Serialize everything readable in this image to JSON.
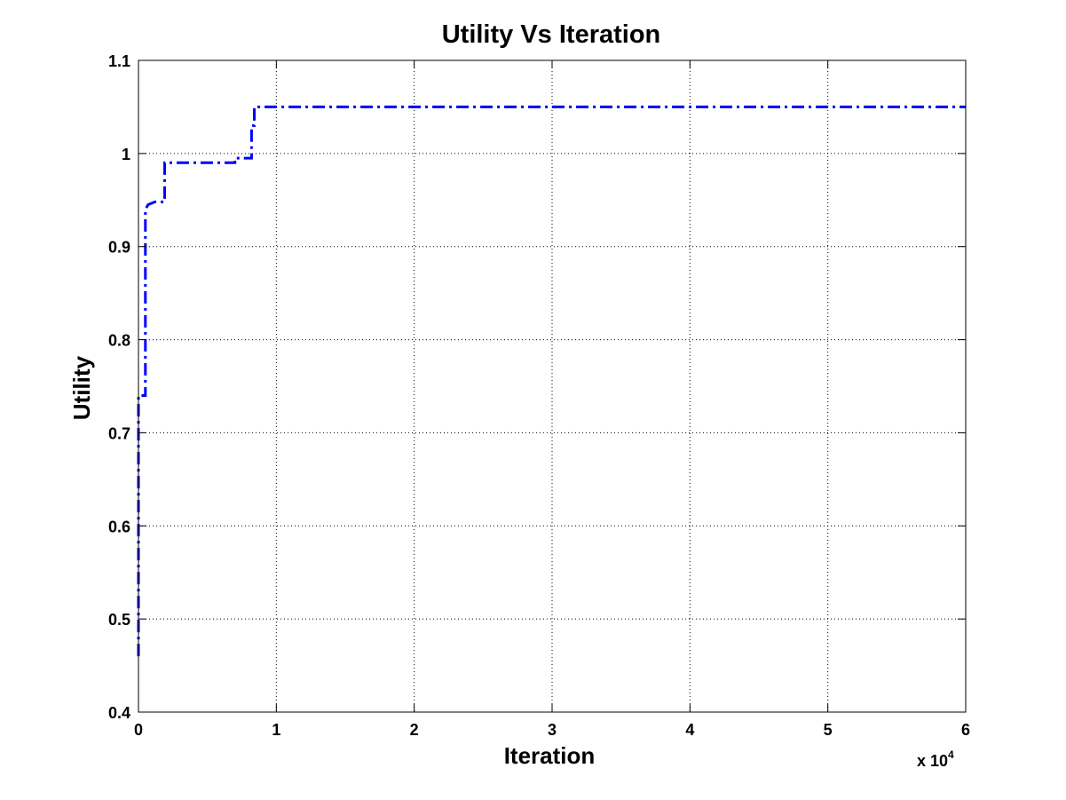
{
  "chart_data": {
    "type": "line",
    "title": "Utility Vs Iteration",
    "xlabel": "Iteration",
    "ylabel": "Utility",
    "x_exponent_base": "x 10",
    "x_exponent_power": "4",
    "xlim": [
      0,
      6
    ],
    "ylim": [
      0.4,
      1.1
    ],
    "xticks": [
      0,
      1,
      2,
      3,
      4,
      5,
      6
    ],
    "xtick_labels": [
      "0",
      "1",
      "2",
      "3",
      "4",
      "5",
      "6"
    ],
    "yticks": [
      0.4,
      0.5,
      0.6,
      0.7,
      0.8,
      0.9,
      1.0,
      1.1
    ],
    "ytick_labels": [
      "0.4",
      "0.5",
      "0.6",
      "0.7",
      "0.8",
      "0.9",
      "1",
      "1.1"
    ],
    "grid": true,
    "line_style": "dash-dot",
    "line_color": "#0000ff",
    "series": [
      {
        "x": [
          0,
          0,
          0.05,
          0.05,
          0.07,
          0.07,
          0.12,
          0.12,
          0.19,
          0.19,
          0.7,
          0.7,
          0.82,
          0.82,
          0.84,
          0.84,
          6
        ],
        "y": [
          0.46,
          0.74,
          0.74,
          0.94,
          0.945,
          0.945,
          0.948,
          0.948,
          0.948,
          0.99,
          0.99,
          0.995,
          0.995,
          1.03,
          1.03,
          1.05,
          1.05
        ]
      }
    ]
  }
}
